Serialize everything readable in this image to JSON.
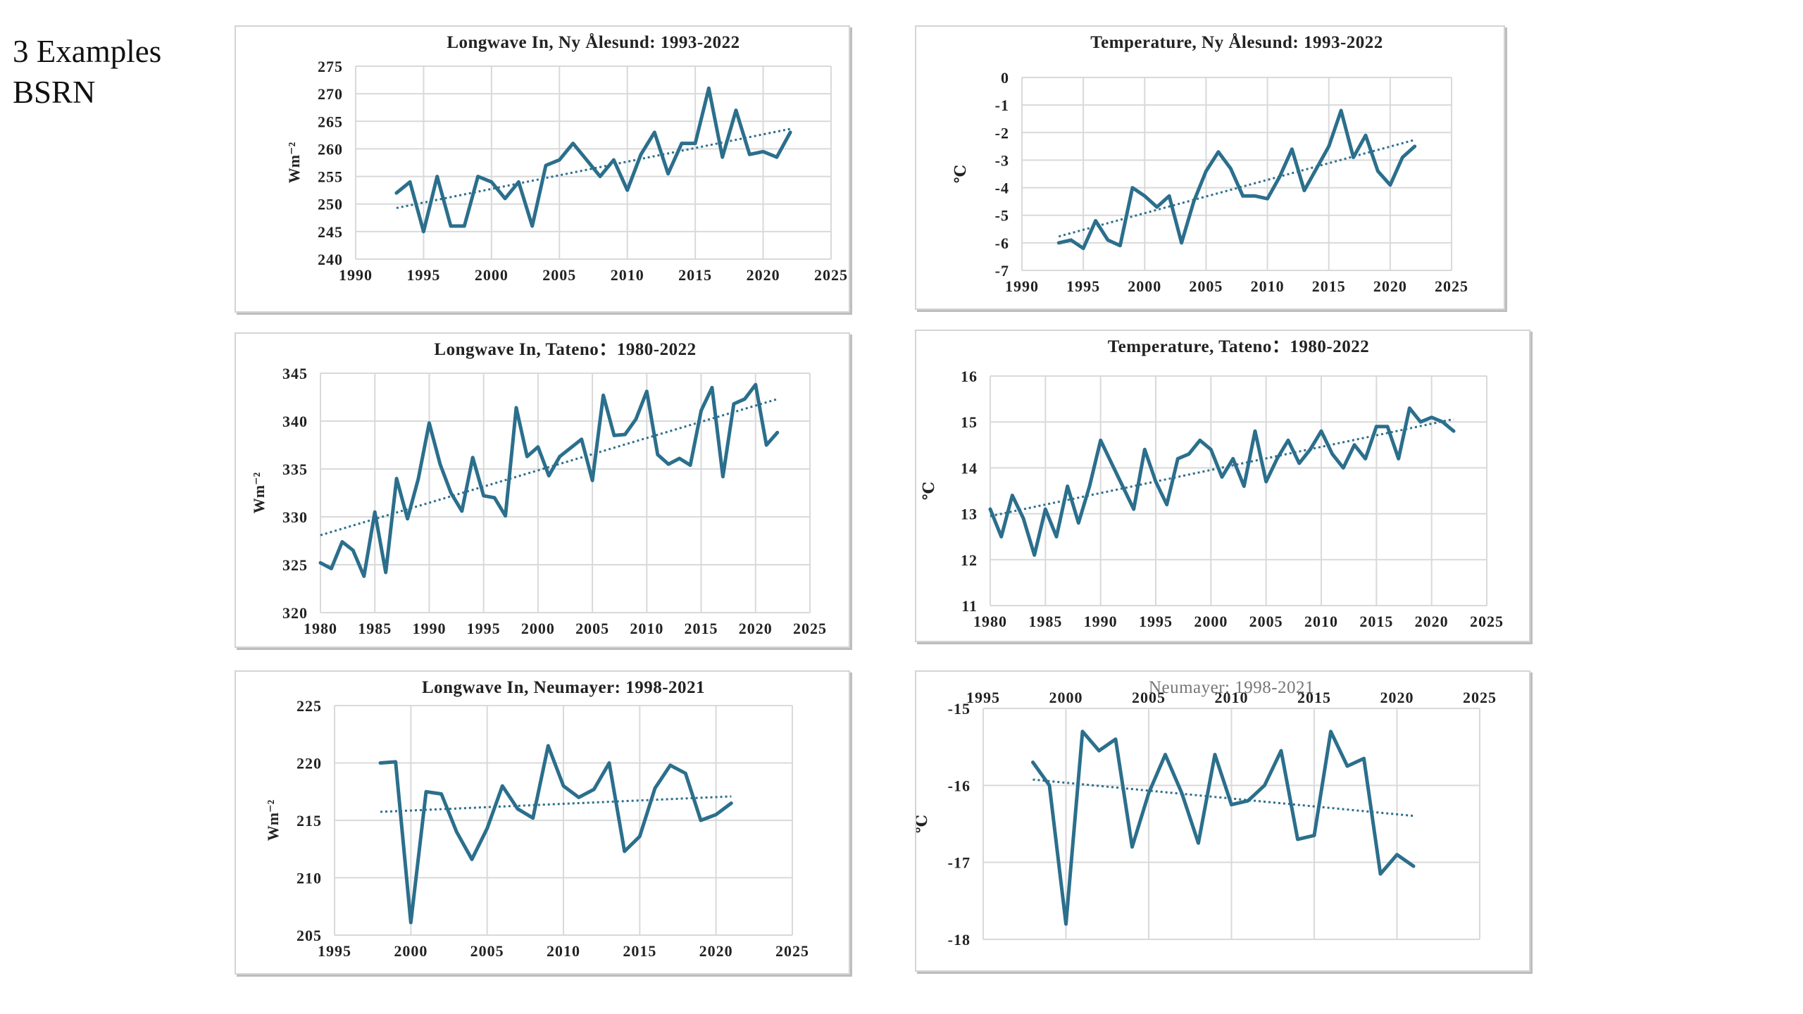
{
  "slide": {
    "title_lines": [
      "3 Examples",
      "BSRN"
    ]
  },
  "colors": {
    "series": "#2b6f8c",
    "grid": "#d9d9d9",
    "trend": "#2b6f8c"
  },
  "chart_data": [
    {
      "id": "lw-ny",
      "type": "line",
      "title": "Longwave In, Ny Ålesund: 1993-2022",
      "ylabel": "Wm⁻²",
      "xlim": [
        1990,
        2025
      ],
      "ylim": [
        240,
        275
      ],
      "xticks": [
        1990,
        1995,
        2000,
        2005,
        2010,
        2015,
        2020,
        2025
      ],
      "yticks": [
        240,
        245,
        250,
        255,
        260,
        265,
        270,
        275
      ],
      "trendline": true,
      "series": [
        {
          "x": [
            1993,
            1994,
            1995,
            1996,
            1997,
            1998,
            1999,
            2000,
            2001,
            2002,
            2003,
            2004,
            2005,
            2006,
            2007,
            2008,
            2009,
            2010,
            2011,
            2012,
            2013,
            2014,
            2015,
            2016,
            2017,
            2018,
            2019,
            2020,
            2021,
            2022
          ],
          "y": [
            252,
            254,
            245,
            255,
            246,
            246,
            255,
            254,
            251,
            254,
            246,
            257,
            258,
            261,
            258,
            255,
            258,
            252.5,
            259,
            263,
            255.5,
            261,
            261,
            271,
            258.5,
            267,
            259,
            259.5,
            258.5,
            263
          ]
        }
      ]
    },
    {
      "id": "temp-ny",
      "type": "line",
      "title": "Temperature, Ny Ålesund: 1993-2022",
      "ylabel": "℃",
      "xlim": [
        1990,
        2025
      ],
      "ylim": [
        -7,
        0
      ],
      "xticks": [
        1990,
        1995,
        2000,
        2005,
        2010,
        2015,
        2020,
        2025
      ],
      "yticks": [
        -7,
        -6,
        -5,
        -4,
        -3,
        -2,
        -1,
        0
      ],
      "trendline": true,
      "series": [
        {
          "x": [
            1993,
            1994,
            1995,
            1996,
            1997,
            1998,
            1999,
            2000,
            2001,
            2002,
            2003,
            2004,
            2005,
            2006,
            2007,
            2008,
            2009,
            2010,
            2011,
            2012,
            2013,
            2014,
            2015,
            2016,
            2017,
            2018,
            2019,
            2020,
            2021,
            2022
          ],
          "y": [
            -6,
            -5.9,
            -6.2,
            -5.2,
            -5.9,
            -6.1,
            -4,
            -4.3,
            -4.7,
            -4.3,
            -6,
            -4.5,
            -3.4,
            -2.7,
            -3.3,
            -4.3,
            -4.3,
            -4.4,
            -3.6,
            -2.6,
            -4.1,
            -3.3,
            -2.5,
            -1.2,
            -2.9,
            -2.1,
            -3.4,
            -3.9,
            -2.9,
            -2.5
          ]
        }
      ]
    },
    {
      "id": "lw-tateno",
      "type": "line",
      "title": "Longwave In, Tateno：1980-2022",
      "ylabel": "Wm⁻²",
      "xlim": [
        1980,
        2025
      ],
      "ylim": [
        320,
        345
      ],
      "xticks": [
        1980,
        1985,
        1990,
        1995,
        2000,
        2005,
        2010,
        2015,
        2020,
        2025
      ],
      "yticks": [
        320,
        325,
        330,
        335,
        340,
        345
      ],
      "trendline": true,
      "series": [
        {
          "x": [
            1980,
            1981,
            1982,
            1983,
            1984,
            1985,
            1986,
            1987,
            1988,
            1989,
            1990,
            1991,
            1992,
            1993,
            1994,
            1995,
            1996,
            1997,
            1998,
            1999,
            2000,
            2001,
            2002,
            2003,
            2004,
            2005,
            2006,
            2007,
            2008,
            2009,
            2010,
            2011,
            2012,
            2013,
            2014,
            2015,
            2016,
            2017,
            2018,
            2019,
            2020,
            2021,
            2022
          ],
          "y": [
            325.2,
            324.6,
            327.4,
            326.5,
            323.8,
            330.5,
            324.2,
            334,
            329.8,
            334,
            339.8,
            335.5,
            332.5,
            330.6,
            336.2,
            332.2,
            332,
            330.1,
            341.4,
            336.3,
            337.3,
            334.3,
            336.3,
            337.2,
            338.1,
            333.8,
            342.7,
            338.5,
            338.6,
            340.2,
            343.1,
            336.5,
            335.5,
            336.1,
            335.4,
            341.1,
            343.5,
            334.2,
            341.8,
            342.3,
            343.8,
            337.5,
            338.8
          ]
        }
      ]
    },
    {
      "id": "temp-tateno",
      "type": "line",
      "title": "Temperature, Tateno：1980-2022",
      "ylabel": "℃",
      "xlim": [
        1980,
        2025
      ],
      "ylim": [
        11,
        16
      ],
      "xticks": [
        1980,
        1985,
        1990,
        1995,
        2000,
        2005,
        2010,
        2015,
        2020,
        2025
      ],
      "yticks": [
        11,
        12,
        13,
        14,
        15,
        16
      ],
      "trendline": true,
      "series": [
        {
          "x": [
            1980,
            1981,
            1982,
            1983,
            1984,
            1985,
            1986,
            1987,
            1988,
            1989,
            1990,
            1991,
            1992,
            1993,
            1994,
            1995,
            1996,
            1997,
            1998,
            1999,
            2000,
            2001,
            2002,
            2003,
            2004,
            2005,
            2006,
            2007,
            2008,
            2009,
            2010,
            2011,
            2012,
            2013,
            2014,
            2015,
            2016,
            2017,
            2018,
            2019,
            2020,
            2021,
            2022
          ],
          "y": [
            13.1,
            12.5,
            13.4,
            12.9,
            12.1,
            13.1,
            12.5,
            13.6,
            12.8,
            13.6,
            14.6,
            14.1,
            13.6,
            13.1,
            14.4,
            13.7,
            13.2,
            14.2,
            14.3,
            14.6,
            14.4,
            13.8,
            14.2,
            13.6,
            14.8,
            13.7,
            14.2,
            14.6,
            14.1,
            14.4,
            14.8,
            14.3,
            14,
            14.5,
            14.2,
            14.9,
            14.9,
            14.2,
            15.3,
            15,
            15.1,
            15,
            14.8
          ]
        }
      ]
    },
    {
      "id": "lw-neumayer",
      "type": "line",
      "title": "Longwave In, Neumayer: 1998-2021",
      "ylabel": "Wm⁻²",
      "xlim": [
        1995,
        2025
      ],
      "ylim": [
        205,
        225
      ],
      "xticks": [
        1995,
        2000,
        2005,
        2010,
        2015,
        2020,
        2025
      ],
      "yticks": [
        205,
        210,
        215,
        220,
        225
      ],
      "trendline": true,
      "series": [
        {
          "x": [
            1998,
            1999,
            2000,
            2001,
            2002,
            2003,
            2004,
            2005,
            2006,
            2007,
            2008,
            2009,
            2010,
            2011,
            2012,
            2013,
            2014,
            2015,
            2016,
            2017,
            2018,
            2019,
            2020,
            2021
          ],
          "y": [
            220,
            220.1,
            206.1,
            217.5,
            217.3,
            214,
            211.6,
            214.3,
            218,
            216,
            215.2,
            221.5,
            218,
            217,
            217.7,
            220,
            212.3,
            213.6,
            217.8,
            219.8,
            219.1,
            215,
            215.5,
            216.5
          ]
        }
      ]
    },
    {
      "id": "temp-neumayer",
      "type": "line",
      "title": "Neumayer: 1998-2021",
      "ylabel": "℃",
      "xlim": [
        1995,
        2025
      ],
      "ylim": [
        -18,
        -15
      ],
      "xticks": [
        1995,
        2000,
        2005,
        2010,
        2015,
        2020,
        2025
      ],
      "yticks": [
        -18,
        -17,
        -16,
        -15
      ],
      "x_axis_position": "top",
      "trendline": true,
      "series": [
        {
          "x": [
            1998,
            1999,
            2000,
            2001,
            2002,
            2003,
            2004,
            2005,
            2006,
            2007,
            2008,
            2009,
            2010,
            2011,
            2012,
            2013,
            2014,
            2015,
            2016,
            2017,
            2018,
            2019,
            2020,
            2021
          ],
          "y": [
            -15.7,
            -16,
            -17.8,
            -15.3,
            -15.55,
            -15.4,
            -16.8,
            -16.1,
            -15.6,
            -16.1,
            -16.75,
            -15.6,
            -16.25,
            -16.2,
            -16,
            -15.55,
            -16.7,
            -16.65,
            -15.3,
            -15.75,
            -15.65,
            -17.15,
            -16.9,
            -17.05
          ]
        }
      ]
    }
  ]
}
